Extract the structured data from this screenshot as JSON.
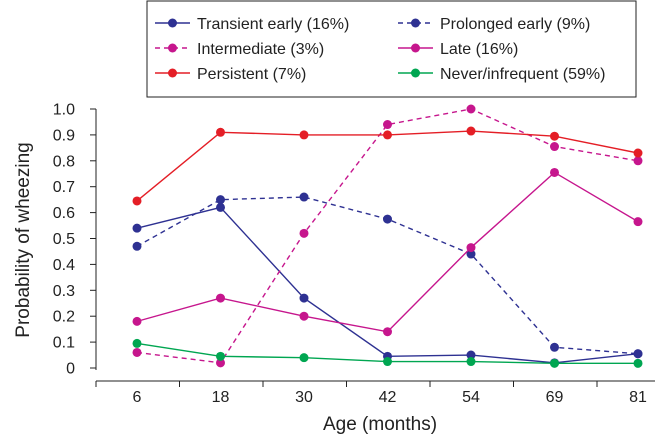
{
  "chart_data": {
    "type": "line",
    "title": "",
    "xlabel": "Age (months)",
    "ylabel": "Probability of wheezing",
    "categories": [
      "6",
      "18",
      "30",
      "42",
      "54",
      "69",
      "81"
    ],
    "ylim": [
      0,
      1.0
    ],
    "yticks": [
      "0",
      "0.1",
      "0.2",
      "0.3",
      "0.4",
      "0.5",
      "0.6",
      "0.7",
      "0.8",
      "0.9",
      "1.0"
    ],
    "grid": false,
    "legend_position": "top",
    "series": [
      {
        "name": "Transient early (16%)",
        "color": "#2e3192",
        "style": "solid",
        "values": [
          0.54,
          0.62,
          0.27,
          0.045,
          0.05,
          0.02,
          0.055
        ]
      },
      {
        "name": "Prolonged early (9%)",
        "color": "#2e3192",
        "style": "dashed",
        "values": [
          0.47,
          0.65,
          0.66,
          0.575,
          0.44,
          0.08,
          0.055
        ]
      },
      {
        "name": "Intermediate (3%)",
        "color": "#c6168d",
        "style": "dashed",
        "values": [
          0.06,
          0.02,
          0.52,
          0.94,
          1.0,
          0.855,
          0.8
        ]
      },
      {
        "name": "Late (16%)",
        "color": "#c6168d",
        "style": "solid",
        "values": [
          0.18,
          0.27,
          0.2,
          0.14,
          0.465,
          0.755,
          0.565
        ]
      },
      {
        "name": "Persistent (7%)",
        "color": "#e41e26",
        "style": "solid",
        "values": [
          0.645,
          0.91,
          0.9,
          0.9,
          0.915,
          0.895,
          0.83
        ]
      },
      {
        "name": "Never/infrequent (59%)",
        "color": "#00a651",
        "style": "solid",
        "values": [
          0.095,
          0.045,
          0.04,
          0.025,
          0.025,
          0.018,
          0.018
        ]
      }
    ]
  }
}
